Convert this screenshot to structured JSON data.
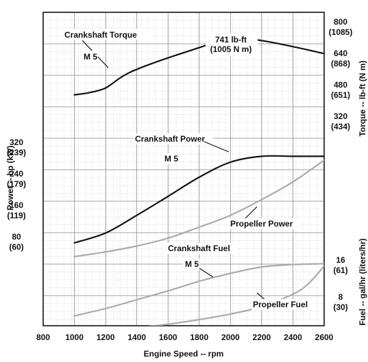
{
  "chart_data": {
    "type": "line",
    "xlabel": "Engine Speed -- rpm",
    "xlim": [
      800,
      2600
    ],
    "x_ticks": [
      "800",
      "1000",
      "1200",
      "1400",
      "1600",
      "1800",
      "2000",
      "2200",
      "2400",
      "2600"
    ],
    "y_axes": {
      "torque": {
        "label": "Torque -- lb-ft (N m)",
        "units": "lb-ft",
        "range": [
          200,
          800
        ],
        "ticks": [
          {
            "value": 800,
            "label": "800",
            "sublabel": "(1085)"
          },
          {
            "value": 640,
            "label": "640",
            "sublabel": "(868)"
          },
          {
            "value": 480,
            "label": "480",
            "sublabel": "(651)"
          },
          {
            "value": 320,
            "label": "320",
            "sublabel": "(434)"
          }
        ]
      },
      "power": {
        "label": "Power -- hp (kW)",
        "units": "hp",
        "range": [
          0,
          400
        ],
        "ticks": [
          {
            "value": 320,
            "label": "320",
            "sublabel": "(239)"
          },
          {
            "value": 240,
            "label": "240",
            "sublabel": "(179)"
          },
          {
            "value": 160,
            "label": "160",
            "sublabel": "(119)"
          },
          {
            "value": 80,
            "label": "80",
            "sublabel": "(60)"
          }
        ]
      },
      "fuel": {
        "label": "Fuel -- gal/hr (liters/hr)",
        "units": "gal/hr",
        "range": [
          0,
          24
        ],
        "ticks": [
          {
            "value": 16,
            "label": "16",
            "sublabel": "(61)"
          },
          {
            "value": 8,
            "label": "8",
            "sublabel": "(30)"
          }
        ]
      }
    },
    "series": [
      {
        "key": "crankshaft_torque",
        "axis": "torque",
        "color": "#111111",
        "x": [
          1000,
          1100,
          1200,
          1300,
          1400,
          1600,
          1800,
          2000,
          2200,
          2400,
          2600
        ],
        "y": [
          450,
          462,
          485,
          540,
          580,
          638,
          690,
          741,
          726,
          695,
          660
        ]
      },
      {
        "key": "crankshaft_power",
        "axis": "power",
        "color": "#111111",
        "x": [
          1000,
          1200,
          1400,
          1600,
          1800,
          2000,
          2200,
          2400,
          2600
        ],
        "y": [
          75,
          100,
          145,
          193,
          242,
          280,
          295,
          295,
          295
        ]
      },
      {
        "key": "propeller_power",
        "axis": "power",
        "color": "#aaaaaa",
        "x": [
          1000,
          1200,
          1400,
          1600,
          1800,
          2000,
          2200,
          2400,
          2600
        ],
        "y": [
          40,
          52,
          67,
          87,
          115,
          145,
          185,
          230,
          285
        ]
      },
      {
        "key": "crankshaft_fuel",
        "axis": "fuel",
        "color": "#aaaaaa",
        "x": [
          1000,
          1200,
          1400,
          1600,
          1800,
          2000,
          2200,
          2400,
          2600
        ],
        "y": [
          4.8,
          6.4,
          8.3,
          10.2,
          12.3,
          14.0,
          15.4,
          15.9,
          16.1
        ]
      },
      {
        "key": "propeller_fuel",
        "axis": "fuel",
        "color": "#aaaaaa",
        "x": [
          1000,
          1200,
          1400,
          1600,
          1800,
          2000,
          2200,
          2400,
          2500,
          2600
        ],
        "y": [
          1.2,
          1.7,
          2.3,
          3.0,
          4.0,
          5.2,
          6.8,
          9.5,
          11.8,
          15.6
        ]
      }
    ],
    "peak": {
      "series": "crankshaft_torque",
      "x": 2000,
      "y": 741,
      "label": "741 lb-ft",
      "sublabel": "(1005 N m)"
    },
    "annotations": {
      "crankshaft_torque": "Crankshaft Torque",
      "torque_m5": "M 5",
      "crankshaft_power": "Crankshaft Power",
      "power_m5": "M 5",
      "propeller_power": "Propeller Power",
      "crankshaft_fuel": "Crankshaft Fuel",
      "fuel_m5": "M 5",
      "propeller_fuel": "Propeller Fuel"
    },
    "grid": true
  }
}
